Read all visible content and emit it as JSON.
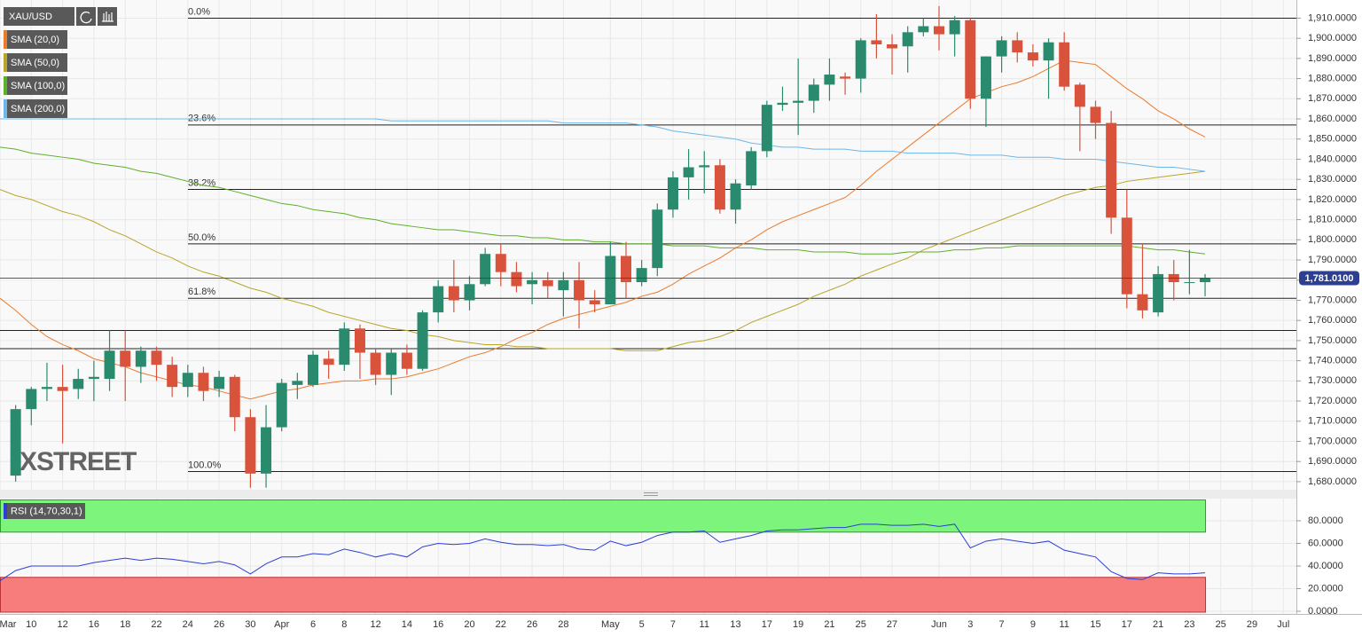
{
  "chart_data": [
    {
      "type": "candlestick",
      "name": "XAU/USD",
      "categories": [
        "Mar",
        null,
        "10",
        null,
        "12",
        null,
        "16",
        null,
        "18",
        null,
        "22",
        null,
        "24",
        null,
        "26",
        null,
        "30",
        null,
        "Apr",
        null,
        "6",
        null,
        "8",
        null,
        "12",
        null,
        "14",
        null,
        "16",
        null,
        "20",
        null,
        "22",
        null,
        "26",
        null,
        "28",
        null,
        null,
        "May",
        null,
        "5",
        null,
        "7",
        null,
        "11",
        null,
        "13",
        null,
        "17",
        null,
        "19",
        null,
        "21",
        null,
        "25",
        null,
        "27",
        null,
        null,
        "Jun",
        null,
        "3",
        null,
        "7",
        null,
        "9",
        null,
        "11",
        null,
        "15",
        null,
        "17",
        null,
        "21",
        null,
        "23",
        null,
        "25",
        null,
        "29",
        null,
        "Jul"
      ],
      "open": [
        null,
        1683,
        1716,
        1726,
        1727,
        1726,
        1731,
        1731,
        1745,
        1737,
        1745,
        1738,
        1727,
        1734,
        1726,
        1732,
        1712,
        1684,
        1707,
        1728,
        1728,
        1741,
        1738,
        1756,
        1744,
        1733,
        1744,
        1736,
        1764,
        1777,
        1770,
        1778,
        1793,
        1784,
        1778,
        1780,
        1775,
        1780,
        1770,
        1768,
        1792,
        1779,
        1786,
        1815,
        1831,
        1836,
        1837,
        1815,
        1827,
        1844,
        1867,
        1868,
        1869,
        1877,
        1881,
        1880,
        1899,
        1897,
        1896,
        1903,
        1906,
        1902,
        1909,
        1870,
        1891,
        1899,
        1893,
        1889,
        1898,
        1877,
        1866,
        1858,
        1811,
        1773,
        1764,
        1783,
        1779,
        1779,
        null,
        null,
        null,
        null,
        null
      ],
      "high": [
        null,
        1718,
        1727,
        1739,
        1738,
        1736,
        1740,
        1755,
        1755,
        1747,
        1747,
        1742,
        1738,
        1737,
        1735,
        1733,
        1716,
        1718,
        1731,
        1734,
        1745,
        1745,
        1759,
        1758,
        1746,
        1746,
        1748,
        1765,
        1780,
        1790,
        1782,
        1796,
        1798,
        1789,
        1784,
        1784,
        1784,
        1789,
        1775,
        1799,
        1799,
        1790,
        1818,
        1834,
        1845,
        1844,
        1840,
        1830,
        1846,
        1869,
        1876,
        1890,
        1880,
        1890,
        1883,
        1900,
        1912,
        1902,
        1906,
        1910,
        1916,
        1911,
        1910,
        1891,
        1901,
        1903,
        1897,
        1900,
        1903,
        1878,
        1869,
        1864,
        1825,
        1798,
        1787,
        1790,
        1795,
        1783,
        null,
        null,
        null,
        null,
        null
      ],
      "low": [
        null,
        1680,
        1708,
        1720,
        1699,
        1721,
        1720,
        1725,
        1720,
        1729,
        1730,
        1722,
        1722,
        1720,
        1722,
        1705,
        1677,
        1677,
        1705,
        1721,
        1727,
        1731,
        1735,
        1731,
        1728,
        1723,
        1733,
        1735,
        1759,
        1764,
        1765,
        1777,
        1777,
        1774,
        1768,
        1771,
        1762,
        1756,
        1764,
        1768,
        1771,
        1777,
        1782,
        1811,
        1820,
        1823,
        1813,
        1808,
        1825,
        1841,
        1864,
        1852,
        1863,
        1869,
        1872,
        1873,
        1890,
        1882,
        1883,
        1901,
        1894,
        1891,
        1865,
        1856,
        1883,
        1888,
        1886,
        1870,
        1874,
        1844,
        1850,
        1803,
        1766,
        1761,
        1762,
        1770,
        1773,
        1772,
        null,
        null,
        null,
        null,
        null
      ],
      "close": [
        null,
        1716,
        1726,
        1727,
        1725,
        1731,
        1732,
        1745,
        1737,
        1745,
        1738,
        1727,
        1734,
        1725,
        1732,
        1712,
        1684,
        1707,
        1729,
        1730,
        1743,
        1738,
        1756,
        1744,
        1733,
        1744,
        1736,
        1764,
        1777,
        1770,
        1778,
        1793,
        1784,
        1777,
        1780,
        1777,
        1780,
        1770,
        1768,
        1792,
        1779,
        1786,
        1815,
        1831,
        1836,
        1837,
        1815,
        1828,
        1844,
        1867,
        1868,
        1869,
        1877,
        1882,
        1880,
        1899,
        1897,
        1895,
        1903,
        1906,
        1902,
        1909,
        1870,
        1891,
        1899,
        1893,
        1889,
        1898,
        1876,
        1866,
        1858,
        1811,
        1773,
        1765,
        1783,
        1779,
        1779,
        1781,
        null,
        null,
        null,
        null,
        null
      ],
      "up_color": "#2a8a6e",
      "down_color": "#d9533c",
      "series": [
        {
          "name": "SMA (20,0)",
          "color": "#ec7a2c",
          "values": [
            1771,
            1765,
            1758,
            1752,
            1748,
            1745,
            1741,
            1739,
            1737,
            1734,
            1732,
            1730,
            1728,
            1727,
            1725,
            1723,
            1721,
            1723,
            1725,
            1726,
            1728,
            1729,
            1730,
            1730,
            1731,
            1731,
            1732,
            1734,
            1736,
            1739,
            1742,
            1744,
            1747,
            1751,
            1754,
            1758,
            1761,
            1763,
            1765,
            1767,
            1769,
            1772,
            1774,
            1778,
            1783,
            1787,
            1791,
            1796,
            1800,
            1805,
            1809,
            1812,
            1815,
            1818,
            1821,
            1827,
            1834,
            1840,
            1846,
            1852,
            1858,
            1864,
            1870,
            1873,
            1876,
            1878,
            1881,
            1885,
            1889,
            1888,
            1887,
            1881,
            1875,
            1870,
            1864,
            1860,
            1855,
            1851,
            null,
            null,
            null,
            null,
            null
          ]
        },
        {
          "name": "SMA (50,0)",
          "color": "#b9a52a",
          "values": [
            1825,
            1822,
            1820,
            1817,
            1814,
            1812,
            1809,
            1805,
            1802,
            1798,
            1794,
            1791,
            1787,
            1784,
            1782,
            1779,
            1776,
            1774,
            1771,
            1769,
            1767,
            1764,
            1762,
            1760,
            1758,
            1756,
            1755,
            1753,
            1752,
            1750,
            1749,
            1748,
            1748,
            1747,
            1747,
            1746,
            1746,
            1746,
            1746,
            1746,
            1745,
            1745,
            1745,
            1747,
            1749,
            1750,
            1752,
            1755,
            1759,
            1762,
            1765,
            1768,
            1772,
            1775,
            1778,
            1782,
            1785,
            1788,
            1791,
            1795,
            1798,
            1801,
            1804,
            1807,
            1810,
            1813,
            1816,
            1819,
            1822,
            1824,
            1826,
            1827,
            1829,
            1830,
            1831,
            1832,
            1833,
            1834,
            null,
            null,
            null,
            null,
            null
          ]
        },
        {
          "name": "SMA (100,0)",
          "color": "#5cb02a",
          "values": [
            1846,
            1845,
            1843,
            1842,
            1841,
            1840,
            1838,
            1837,
            1836,
            1834,
            1833,
            1831,
            1829,
            1827,
            1826,
            1824,
            1822,
            1820,
            1818,
            1817,
            1815,
            1814,
            1813,
            1811,
            1810,
            1808,
            1807,
            1806,
            1805,
            1805,
            1804,
            1803,
            1802,
            1802,
            1801,
            1801,
            1800,
            1800,
            1799,
            1799,
            1798,
            1798,
            1798,
            1797,
            1797,
            1797,
            1796,
            1796,
            1796,
            1795,
            1795,
            1795,
            1794,
            1794,
            1794,
            1793,
            1793,
            1793,
            1794,
            1794,
            1794,
            1795,
            1795,
            1796,
            1796,
            1797,
            1797,
            1797,
            1797,
            1797,
            1797,
            1797,
            1797,
            1796,
            1795,
            1795,
            1794,
            1793,
            null,
            null,
            null,
            null,
            null
          ]
        },
        {
          "name": "SMA (200,0)",
          "color": "#6db6ea",
          "values": [
            1860,
            1860,
            1860,
            1860,
            1860,
            1860,
            1860,
            1860,
            1860,
            1860,
            1860,
            1860,
            1860,
            1860,
            1860,
            1860,
            1860,
            1860,
            1860,
            1860,
            1860,
            1860,
            1860,
            1860,
            1860,
            1859,
            1859,
            1859,
            1859,
            1859,
            1859,
            1859,
            1859,
            1859,
            1859,
            1859,
            1858,
            1858,
            1858,
            1858,
            1858,
            1857,
            1856,
            1854,
            1853,
            1852,
            1851,
            1850,
            1848,
            1847,
            1846,
            1846,
            1845,
            1845,
            1845,
            1844,
            1844,
            1844,
            1843,
            1843,
            1843,
            1843,
            1842,
            1842,
            1842,
            1841,
            1841,
            1841,
            1840,
            1840,
            1840,
            1839,
            1838,
            1837,
            1836,
            1836,
            1835,
            1834,
            null,
            null,
            null,
            null,
            null
          ]
        }
      ],
      "fib_levels": [
        {
          "label": "0.0%",
          "value": 1910
        },
        {
          "label": "23.6%",
          "value": 1857
        },
        {
          "label": "38.2%",
          "value": 1825
        },
        {
          "label": "50.0%",
          "value": 1798
        },
        {
          "label": "61.8%",
          "value": 1771
        },
        {
          "label": "100.0%",
          "value": 1685
        }
      ],
      "horizontal_lines": [
        1755,
        1746
      ],
      "last_price": {
        "value": 1781.01,
        "label": "1,781.0100"
      },
      "watermark": "XSTREET",
      "ylim": [
        1676,
        1919
      ],
      "yticks": [
        {
          "value": 1680,
          "label": "1,680.0000"
        },
        {
          "value": 1690,
          "label": "1,690.0000"
        },
        {
          "value": 1700,
          "label": "1,700.0000"
        },
        {
          "value": 1710,
          "label": "1,710.0000"
        },
        {
          "value": 1720,
          "label": "1,720.0000"
        },
        {
          "value": 1730,
          "label": "1,730.0000"
        },
        {
          "value": 1740,
          "label": "1,740.0000"
        },
        {
          "value": 1750,
          "label": "1,750.0000"
        },
        {
          "value": 1760,
          "label": "1,760.0000"
        },
        {
          "value": 1770,
          "label": "1,770.0000"
        },
        {
          "value": 1780,
          "label": "1,780.0000"
        },
        {
          "value": 1790,
          "label": "1,790.0000"
        },
        {
          "value": 1800,
          "label": "1,800.0000"
        },
        {
          "value": 1810,
          "label": "1,810.0000"
        },
        {
          "value": 1820,
          "label": "1,820.0000"
        },
        {
          "value": 1830,
          "label": "1,830.0000"
        },
        {
          "value": 1840,
          "label": "1,840.0000"
        },
        {
          "value": 1850,
          "label": "1,850.0000"
        },
        {
          "value": 1860,
          "label": "1,860.0000"
        },
        {
          "value": 1870,
          "label": "1,870.0000"
        },
        {
          "value": 1880,
          "label": "1,880.0000"
        },
        {
          "value": 1890,
          "label": "1,890.0000"
        },
        {
          "value": 1900,
          "label": "1,900.0000"
        },
        {
          "value": 1910,
          "label": "1,910.0000"
        }
      ],
      "grid": true
    },
    {
      "type": "line",
      "name": "RSI (14,70,30,1)",
      "color": "#2b3fd6",
      "values": [
        27,
        36,
        40,
        40,
        40,
        40,
        43,
        45,
        47,
        45,
        47,
        46,
        44,
        42,
        44,
        41,
        33,
        42,
        48,
        48,
        51,
        50,
        55,
        52,
        48,
        51,
        48,
        57,
        60,
        59,
        60,
        64,
        61,
        59,
        59,
        58,
        59,
        55,
        54,
        62,
        58,
        61,
        67,
        70,
        70,
        71,
        61,
        64,
        67,
        71,
        72,
        72,
        73,
        74,
        74,
        77,
        77,
        76,
        76,
        77,
        75,
        77,
        56,
        62,
        64,
        62,
        60,
        62,
        54,
        51,
        48,
        35,
        29,
        28,
        34,
        33,
        33,
        34,
        null,
        null,
        null,
        null,
        null
      ],
      "overbought_level": 70,
      "oversold_level": 30,
      "ylim": [
        0,
        100
      ],
      "yticks": [
        {
          "value": 0,
          "label": "0.0000"
        },
        {
          "value": 20,
          "label": "20.0000"
        },
        {
          "value": 40,
          "label": "40.0000"
        },
        {
          "value": 60,
          "label": "60.0000"
        },
        {
          "value": 80,
          "label": "80.0000"
        }
      ],
      "grid": true
    }
  ]
}
